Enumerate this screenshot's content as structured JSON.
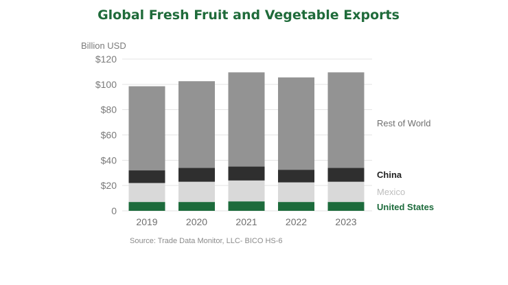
{
  "chart_data": {
    "type": "bar",
    "stacked": true,
    "title": "Global Fresh Fruit and Vegetable Exports",
    "ylabel": "Billion USD",
    "xlabel": "",
    "categories": [
      "2019",
      "2020",
      "2021",
      "2022",
      "2023"
    ],
    "ylim": [
      0,
      120
    ],
    "yticks": [
      {
        "value": 0,
        "label": "0"
      },
      {
        "value": 20,
        "label": "$20"
      },
      {
        "value": 40,
        "label": "$40"
      },
      {
        "value": 60,
        "label": "$60"
      },
      {
        "value": 80,
        "label": "$80"
      },
      {
        "value": 100,
        "label": "$100"
      },
      {
        "value": 120,
        "label": "$120"
      }
    ],
    "grid": true,
    "legend_placement": "right",
    "series": [
      {
        "name": "United States",
        "color": "#1d6b3c",
        "label_color": "#1d6b3c",
        "label_bold": true,
        "values": [
          7,
          7,
          7.5,
          7,
          7
        ]
      },
      {
        "name": "Mexico",
        "color": "#d9d9d9",
        "label_color": "#bdbdbd",
        "label_bold": false,
        "values": [
          15,
          16,
          16.5,
          15.5,
          16
        ]
      },
      {
        "name": "China",
        "color": "#2f2f2f",
        "label_color": "#222222",
        "label_bold": true,
        "values": [
          10,
          11,
          11,
          10,
          11
        ]
      },
      {
        "name": "Rest of World",
        "color": "#939393",
        "label_color": "#6e6e6e",
        "label_bold": false,
        "values": [
          66.5,
          68.5,
          74.5,
          73,
          75.5
        ]
      }
    ],
    "source": "Source: Trade Data Monitor, LLC- BICO HS-6"
  }
}
